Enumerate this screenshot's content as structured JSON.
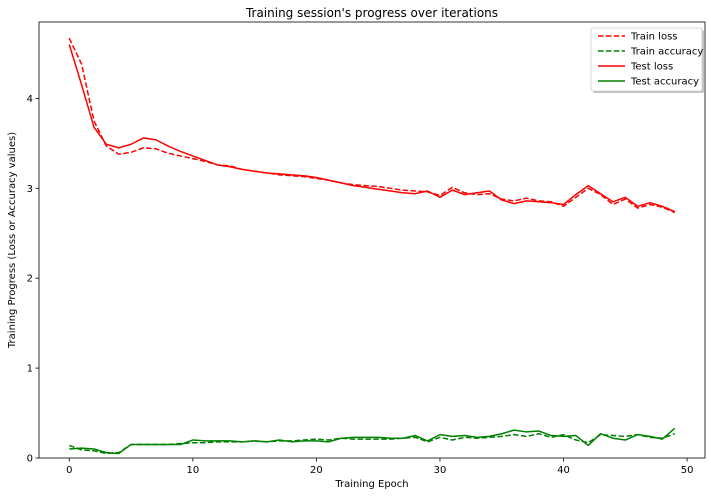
{
  "chart_data": {
    "type": "line",
    "title": "Training session's progress over iterations",
    "xlabel": "Training Epoch",
    "ylabel": "Training Progress (Loss or Accuracy values)",
    "xlim": [
      -2.45,
      51.45
    ],
    "ylim": [
      0,
      4.85
    ],
    "xticks": [
      0,
      10,
      20,
      30,
      40,
      50
    ],
    "yticks": [
      0,
      1,
      2,
      3,
      4
    ],
    "grid": false,
    "legend_position": "top-right",
    "x": [
      0,
      1,
      2,
      3,
      4,
      5,
      6,
      7,
      8,
      9,
      10,
      11,
      12,
      13,
      14,
      15,
      16,
      17,
      18,
      19,
      20,
      21,
      22,
      23,
      24,
      25,
      26,
      27,
      28,
      29,
      30,
      31,
      32,
      33,
      34,
      35,
      36,
      37,
      38,
      39,
      40,
      41,
      42,
      43,
      44,
      45,
      46,
      47,
      48,
      49
    ],
    "series": [
      {
        "name": "Train loss",
        "color": "#ff0000",
        "dash": "dashed",
        "values": [
          4.67,
          4.38,
          3.75,
          3.47,
          3.38,
          3.4,
          3.45,
          3.44,
          3.39,
          3.36,
          3.33,
          3.3,
          3.26,
          3.25,
          3.21,
          3.19,
          3.17,
          3.15,
          3.14,
          3.13,
          3.11,
          3.09,
          3.06,
          3.04,
          3.03,
          3.02,
          3.0,
          2.98,
          2.97,
          2.96,
          2.92,
          3.01,
          2.95,
          2.93,
          2.94,
          2.88,
          2.86,
          2.89,
          2.86,
          2.85,
          2.8,
          2.9,
          3.0,
          2.93,
          2.82,
          2.88,
          2.78,
          2.82,
          2.79,
          2.73
        ]
      },
      {
        "name": "Train accuracy",
        "color": "#008000",
        "dash": "dashed",
        "values": [
          0.14,
          0.09,
          0.08,
          0.05,
          0.06,
          0.15,
          0.15,
          0.15,
          0.15,
          0.16,
          0.17,
          0.17,
          0.18,
          0.18,
          0.18,
          0.19,
          0.18,
          0.19,
          0.19,
          0.2,
          0.21,
          0.2,
          0.22,
          0.21,
          0.21,
          0.21,
          0.21,
          0.22,
          0.23,
          0.18,
          0.23,
          0.2,
          0.23,
          0.22,
          0.23,
          0.24,
          0.26,
          0.24,
          0.27,
          0.23,
          0.26,
          0.2,
          0.17,
          0.26,
          0.25,
          0.24,
          0.26,
          0.23,
          0.22,
          0.27
        ]
      },
      {
        "name": "Test loss",
        "color": "#ff0000",
        "dash": "solid",
        "values": [
          4.6,
          4.15,
          3.68,
          3.49,
          3.45,
          3.49,
          3.56,
          3.54,
          3.47,
          3.41,
          3.36,
          3.31,
          3.26,
          3.24,
          3.21,
          3.19,
          3.17,
          3.16,
          3.15,
          3.14,
          3.12,
          3.09,
          3.06,
          3.03,
          3.01,
          2.99,
          2.97,
          2.95,
          2.94,
          2.97,
          2.9,
          2.98,
          2.93,
          2.95,
          2.97,
          2.87,
          2.83,
          2.86,
          2.85,
          2.84,
          2.82,
          2.93,
          3.03,
          2.94,
          2.85,
          2.9,
          2.8,
          2.84,
          2.8,
          2.74
        ]
      },
      {
        "name": "Test accuracy",
        "color": "#008000",
        "dash": "solid",
        "values": [
          0.1,
          0.11,
          0.1,
          0.06,
          0.05,
          0.15,
          0.15,
          0.15,
          0.15,
          0.15,
          0.2,
          0.19,
          0.19,
          0.19,
          0.18,
          0.19,
          0.18,
          0.2,
          0.18,
          0.19,
          0.19,
          0.18,
          0.22,
          0.23,
          0.23,
          0.23,
          0.22,
          0.22,
          0.25,
          0.19,
          0.26,
          0.24,
          0.25,
          0.23,
          0.24,
          0.27,
          0.31,
          0.29,
          0.3,
          0.25,
          0.24,
          0.25,
          0.14,
          0.27,
          0.22,
          0.2,
          0.26,
          0.24,
          0.21,
          0.33
        ]
      }
    ]
  }
}
